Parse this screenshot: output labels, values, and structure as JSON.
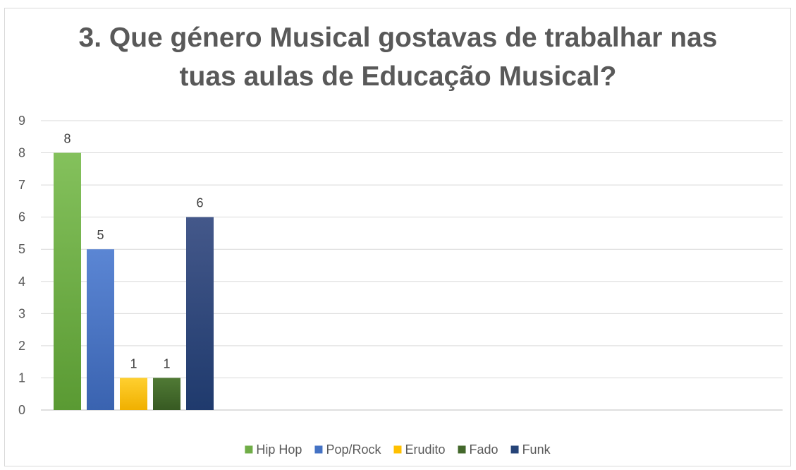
{
  "chart_data": {
    "type": "bar",
    "title_lines": [
      "3. Que género Musical gostavas de trabalhar nas",
      "tuas aulas de Educação Musical?"
    ],
    "series": [
      {
        "name": "Hip Hop",
        "value": 8,
        "color": "#70ad47",
        "color_light": "#84c15c",
        "color_dark": "#5a9a33"
      },
      {
        "name": "Pop/Rock",
        "value": 5,
        "color": "#4472c4",
        "color_light": "#5b86d4",
        "color_dark": "#3a63b0"
      },
      {
        "name": "Erudito",
        "value": 1,
        "color": "#ffc000",
        "color_light": "#ffd030",
        "color_dark": "#f0b000"
      },
      {
        "name": "Fado",
        "value": 1,
        "color": "#43682b",
        "color_light": "#507a35",
        "color_dark": "#375a22"
      },
      {
        "name": "Funk",
        "value": 6,
        "color": "#264478",
        "color_light": "#44588a",
        "color_dark": "#1f3a6d"
      }
    ],
    "ylim": [
      0,
      9
    ],
    "yticks": [
      "0",
      "1",
      "2",
      "3",
      "4",
      "5",
      "6",
      "7",
      "8",
      "9"
    ],
    "grid": true,
    "legend_position": "bottom",
    "xlabel": "",
    "ylabel": ""
  }
}
